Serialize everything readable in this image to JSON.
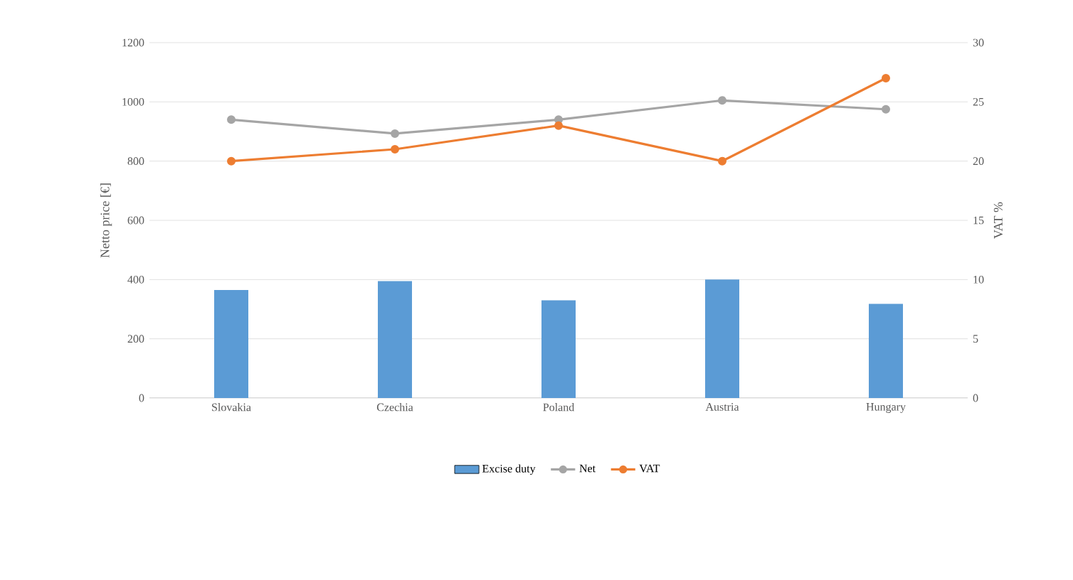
{
  "chart_data": {
    "type": "bar",
    "categories": [
      "Slovakia",
      "Czechia",
      "Poland",
      "Austria",
      "Hungary"
    ],
    "ylabel": "Netto price [€]",
    "y2label": "VAT %",
    "ylim": [
      0,
      1200
    ],
    "yticks": [
      0,
      200,
      400,
      600,
      800,
      1000,
      1200
    ],
    "y2lim": [
      0,
      30
    ],
    "y2ticks": [
      0,
      5,
      10,
      15,
      20,
      25,
      30
    ],
    "grid": "y",
    "legend": "bottom",
    "marker": "circle",
    "series": [
      {
        "name": "Excise duty",
        "color": "#5b9bd5",
        "values": [
          365,
          395,
          330,
          400,
          318
        ]
      },
      {
        "name": "Net",
        "type": "line",
        "color": "#a5a5a5",
        "values": [
          940,
          893,
          940,
          1005,
          975
        ]
      },
      {
        "name": "VAT",
        "type": "line",
        "axis": "y2",
        "color": "#ed7d31",
        "values": [
          20,
          21,
          23,
          20,
          27
        ]
      }
    ]
  }
}
